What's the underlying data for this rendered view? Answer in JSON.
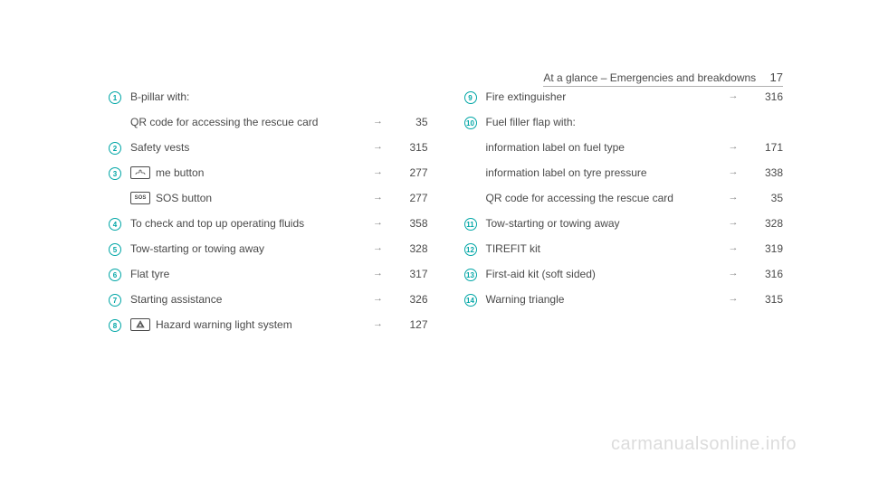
{
  "header": {
    "title": "At a glance – Emergencies and breakdowns",
    "page": "17"
  },
  "leftColumn": [
    {
      "bullet": "1",
      "label": "B-pillar with:",
      "arrow": "",
      "page": ""
    },
    {
      "bullet": "",
      "label": "QR code for accessing the rescue card",
      "arrow": "→",
      "page": "35",
      "sub": true
    },
    {
      "bullet": "2",
      "label": "Safety vests",
      "arrow": "→",
      "page": "315"
    },
    {
      "bullet": "3",
      "label": "me button",
      "arrow": "→",
      "page": "277",
      "icon": "phone"
    },
    {
      "bullet": "",
      "label": "SOS button",
      "arrow": "→",
      "page": "277",
      "sub": true,
      "icon": "sos"
    },
    {
      "bullet": "4",
      "label": "To check and top up operating fluids",
      "arrow": "→",
      "page": "358"
    },
    {
      "bullet": "5",
      "label": "Tow-starting or towing away",
      "arrow": "→",
      "page": "328"
    },
    {
      "bullet": "6",
      "label": "Flat tyre",
      "arrow": "→",
      "page": "317"
    },
    {
      "bullet": "7",
      "label": "Starting assistance",
      "arrow": "→",
      "page": "326"
    },
    {
      "bullet": "8",
      "label": "Hazard warning light system",
      "arrow": "→",
      "page": "127",
      "icon": "hazard"
    }
  ],
  "rightColumn": [
    {
      "bullet": "9",
      "label": "Fire extinguisher",
      "arrow": "→",
      "page": "316"
    },
    {
      "bullet": "10",
      "label": "Fuel filler flap with:",
      "arrow": "",
      "page": ""
    },
    {
      "bullet": "",
      "label": "information label on fuel type",
      "arrow": "→",
      "page": "171",
      "sub": true
    },
    {
      "bullet": "",
      "label": "information label on tyre pressure",
      "arrow": "→",
      "page": "338",
      "sub": true
    },
    {
      "bullet": "",
      "label": "QR code for accessing the rescue card",
      "arrow": "→",
      "page": "35",
      "sub": true
    },
    {
      "bullet": "11",
      "label": "Tow-starting or towing away",
      "arrow": "→",
      "page": "328"
    },
    {
      "bullet": "12",
      "label": "TIREFIT kit",
      "arrow": "→",
      "page": "319"
    },
    {
      "bullet": "13",
      "label": "First-aid kit (soft sided)",
      "arrow": "→",
      "page": "316"
    },
    {
      "bullet": "14",
      "label": "Warning triangle",
      "arrow": "→",
      "page": "315"
    }
  ],
  "watermark": "carmanualsonline.info",
  "colors": {
    "bulletColor": "#00a6a6",
    "textColor": "#4a4a4a",
    "arrowColor": "#888888",
    "watermarkColor": "#dcdcdc"
  }
}
